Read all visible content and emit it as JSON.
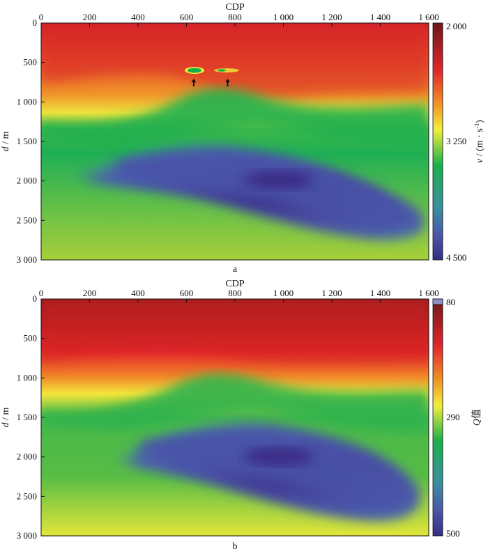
{
  "chart_data": [
    {
      "type": "heatmap",
      "panel_label": "a",
      "xlabel": "CDP",
      "ylabel": "d / m",
      "x_ticks": [
        "0",
        "200",
        "400",
        "600",
        "800",
        "1 000",
        "1 200",
        "1 400",
        "1 600"
      ],
      "y_ticks": [
        "0",
        "500",
        "1 000",
        "1 500",
        "2 000",
        "2 500",
        "3 000"
      ],
      "xlim": [
        0,
        1600
      ],
      "ylim": [
        0,
        3000
      ],
      "y_inverted": true,
      "colorbar": {
        "label": "v / (m · s⁻¹)",
        "ticks": [
          "2 000",
          "3 250",
          "4 500"
        ],
        "range": [
          2000,
          4500
        ]
      },
      "features": [
        {
          "name": "layer-top",
          "note": "low velocity ~2000 m/s near surface"
        },
        {
          "name": "high-velocity-body",
          "cdp_center": 1050,
          "depth_center": 1950,
          "value": 4500
        }
      ],
      "markers": [
        {
          "cdp": 630,
          "depth": 600
        },
        {
          "cdp": 770,
          "depth": 600
        }
      ]
    },
    {
      "type": "heatmap",
      "panel_label": "b",
      "xlabel": "CDP",
      "ylabel": "d / m",
      "x_ticks": [
        "0",
        "200",
        "400",
        "600",
        "800",
        "1 000",
        "1 200",
        "1 400",
        "1 600"
      ],
      "y_ticks": [
        "0",
        "500",
        "1 000",
        "1 500",
        "2 000",
        "2 500",
        "3 000"
      ],
      "xlim": [
        0,
        1600
      ],
      "ylim": [
        0,
        3000
      ],
      "y_inverted": true,
      "colorbar": {
        "label": "Q值",
        "ticks": [
          "80",
          "290",
          "500"
        ],
        "range": [
          80,
          500
        ]
      },
      "features": [
        {
          "name": "high-Q-body",
          "cdp_center": 1050,
          "depth_center": 1950,
          "value": 500
        }
      ]
    }
  ],
  "colors": {
    "ramp": [
      "#8b1a1a",
      "#d8262c",
      "#f08a24",
      "#f3ee3a",
      "#19b04b",
      "#4a53a8",
      "#352e86"
    ]
  }
}
